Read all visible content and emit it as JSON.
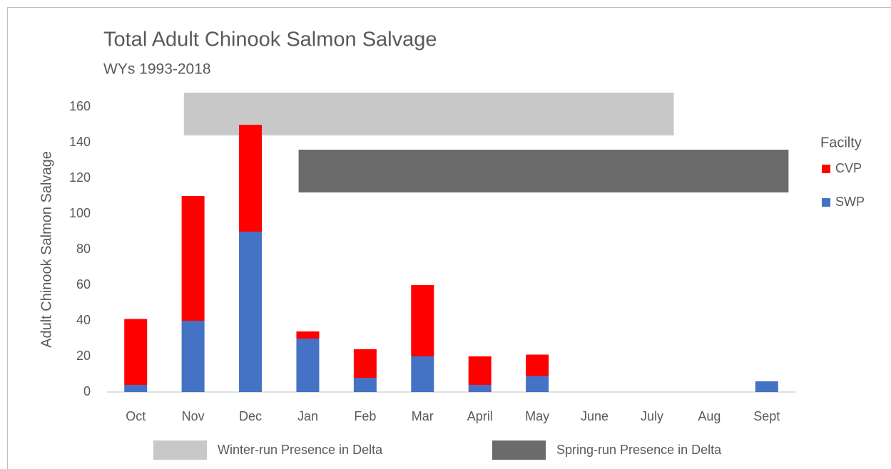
{
  "chart_data": {
    "type": "stacked_bar",
    "title": "Total Adult Chinook Salmon Salvage",
    "subtitle": "WYs 1993-2018",
    "y_label": "Adult Chinook Salmon Salvage",
    "categories": [
      "Oct",
      "Nov",
      "Dec",
      "Jan",
      "Feb",
      "Mar",
      "April",
      "May",
      "June",
      "July",
      "Aug",
      "Sept"
    ],
    "series": [
      {
        "name": "SWP",
        "color": "#4472c4",
        "values": [
          4,
          40,
          90,
          30,
          8,
          20,
          4,
          9,
          0,
          0,
          0,
          6
        ]
      },
      {
        "name": "CVP",
        "color": "#ff0000",
        "values": [
          37,
          70,
          60,
          4,
          16,
          40,
          16,
          12,
          0,
          0,
          0,
          0
        ]
      }
    ],
    "legend_title": "Facilty",
    "bands": [
      {
        "name": "Winter-run Presence in Delta",
        "color": "#c8c8c8",
        "start": "Nov",
        "end": "July",
        "range": [
          144,
          168
        ]
      },
      {
        "name": "Spring-run Presence in Delta",
        "color": "#6b6b6b",
        "start": "Jan",
        "end": "Sept",
        "range": [
          112,
          136
        ]
      }
    ],
    "ylim": [
      0,
      160
    ],
    "yticks": [
      0,
      20,
      40,
      60,
      80,
      100,
      120,
      140,
      160
    ]
  }
}
